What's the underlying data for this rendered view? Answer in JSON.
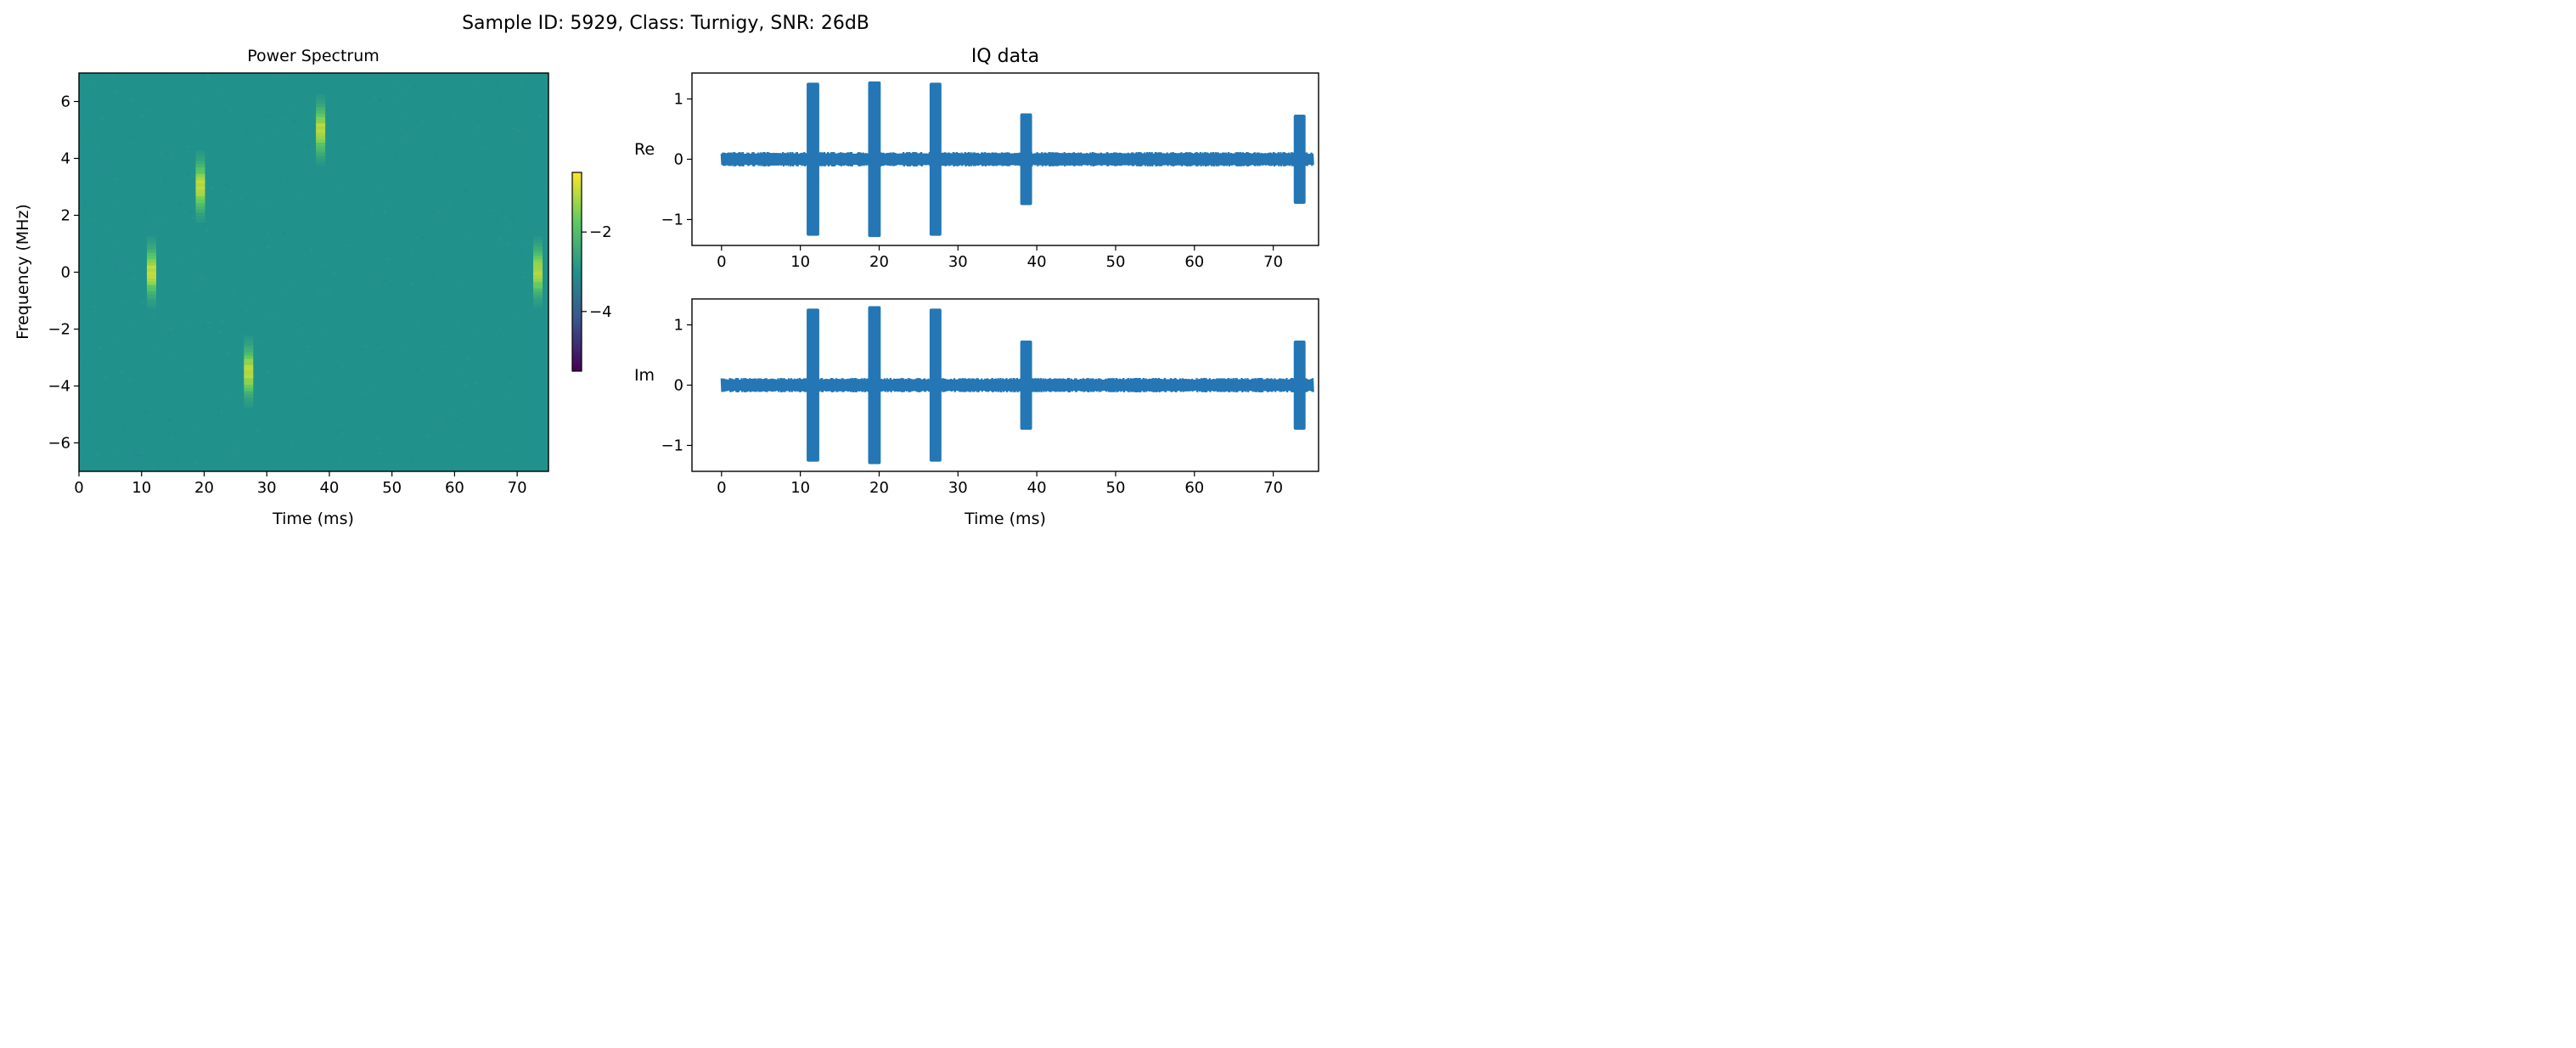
{
  "figure": {
    "suptitle": "Sample ID: 5929, Class: Turnigy, SNR: 26dB"
  },
  "colors": {
    "background": "#21918c",
    "signal": "#2477b4",
    "axes": "#000000",
    "viridis": [
      "#440154",
      "#3b528b",
      "#21918c",
      "#5ec962",
      "#fde725"
    ]
  },
  "chart_data": [
    {
      "type": "heatmap",
      "title": "Power Spectrum",
      "xlabel": "Time (ms)",
      "ylabel": "Frequency (MHz)",
      "xlim": [
        0,
        75
      ],
      "ylim": [
        -7,
        7
      ],
      "xticks": [
        0,
        10,
        20,
        30,
        40,
        50,
        60,
        70
      ],
      "yticks": [
        -6,
        -4,
        -2,
        0,
        2,
        4,
        6
      ],
      "grid": false,
      "colormap": "viridis",
      "background_level": -3.0,
      "colorbar": {
        "range": [
          -5.5,
          -0.5
        ],
        "ticks": [
          -2,
          -4
        ]
      },
      "bursts": [
        {
          "time_ms": 11.6,
          "freq_mhz": 0.0,
          "level": -0.8
        },
        {
          "time_ms": 19.4,
          "freq_mhz": 3.0,
          "level": -0.8
        },
        {
          "time_ms": 27.1,
          "freq_mhz": -3.5,
          "level": -0.8
        },
        {
          "time_ms": 38.6,
          "freq_mhz": 5.0,
          "level": -0.9
        },
        {
          "time_ms": 73.3,
          "freq_mhz": 0.0,
          "level": -0.9
        }
      ]
    },
    {
      "type": "line",
      "title": "IQ data",
      "panels": [
        {
          "ylabel": "Re",
          "xlim": [
            -3.75,
            75.75
          ],
          "ylim": [
            -1.43,
            1.43
          ],
          "xticks": [
            0,
            10,
            20,
            30,
            40,
            50,
            60,
            70
          ],
          "yticks": [
            -1,
            0,
            1
          ],
          "noise_amplitude": 0.12,
          "bursts": [
            {
              "start_ms": 10.8,
              "end_ms": 12.4,
              "amplitude": 1.27
            },
            {
              "start_ms": 18.6,
              "end_ms": 20.2,
              "amplitude": 1.29
            },
            {
              "start_ms": 26.4,
              "end_ms": 27.9,
              "amplitude": 1.27
            },
            {
              "start_ms": 37.9,
              "end_ms": 39.4,
              "amplitude": 0.76
            },
            {
              "start_ms": 72.6,
              "end_ms": 74.1,
              "amplitude": 0.74
            }
          ]
        },
        {
          "ylabel": "Im",
          "xlabel": "Time (ms)",
          "xlim": [
            -3.75,
            75.75
          ],
          "ylim": [
            -1.43,
            1.43
          ],
          "xticks": [
            0,
            10,
            20,
            30,
            40,
            50,
            60,
            70
          ],
          "yticks": [
            -1,
            0,
            1
          ],
          "noise_amplitude": 0.12,
          "bursts": [
            {
              "start_ms": 10.8,
              "end_ms": 12.4,
              "amplitude": 1.27
            },
            {
              "start_ms": 18.6,
              "end_ms": 20.2,
              "amplitude": 1.31
            },
            {
              "start_ms": 26.4,
              "end_ms": 27.9,
              "amplitude": 1.27
            },
            {
              "start_ms": 37.9,
              "end_ms": 39.4,
              "amplitude": 0.74
            },
            {
              "start_ms": 72.6,
              "end_ms": 74.1,
              "amplitude": 0.74
            }
          ]
        }
      ]
    }
  ]
}
